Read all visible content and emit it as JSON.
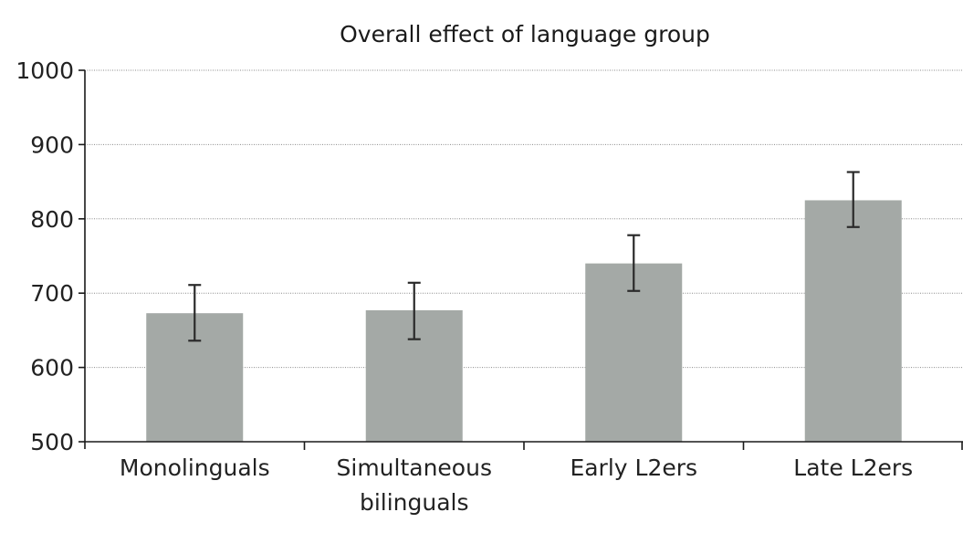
{
  "chart_data": {
    "type": "bar",
    "title": "Overall effect of language group",
    "xlabel": "",
    "ylabel": "",
    "ylim": [
      500,
      1000
    ],
    "yticks": [
      500,
      600,
      700,
      800,
      900,
      1000
    ],
    "categories": [
      [
        "Monolinguals"
      ],
      [
        "Simultaneous",
        "bilinguals"
      ],
      [
        "Early L2ers"
      ],
      [
        "Late L2ers"
      ]
    ],
    "values": [
      673,
      677,
      740,
      825
    ],
    "error": [
      [
        636,
        711
      ],
      [
        638,
        714
      ],
      [
        703,
        778
      ],
      [
        789,
        863
      ]
    ],
    "grid": true,
    "legend": "none",
    "colors": {
      "bar": "#a4a9a6",
      "error_bar": "#2a2a2a",
      "grid": "#8a8a8a",
      "axis": "#1a1a1a"
    }
  }
}
